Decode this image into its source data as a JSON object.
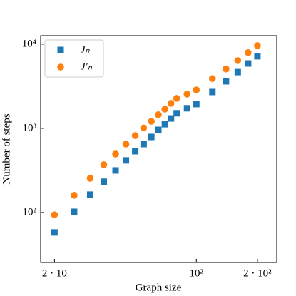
{
  "chart_data": {
    "type": "scatter",
    "xlabel": "Graph size",
    "ylabel": "Number of steps",
    "xlog": true,
    "ylog": true,
    "legend": "upper left",
    "xlim": [
      17.1,
      249
    ],
    "ylim": [
      25.5,
      12600
    ],
    "xticks": [
      {
        "value": 20,
        "label": "2 · 10"
      },
      {
        "value": 100,
        "label": "10²"
      },
      {
        "value": 200,
        "label": "2 · 10²"
      }
    ],
    "yticks": [
      {
        "value": 100,
        "label": "10²"
      },
      {
        "value": 1000,
        "label": "10³"
      },
      {
        "value": 10000,
        "label": "10⁴"
      }
    ],
    "x": [
      20,
      25,
      30,
      35,
      40,
      45,
      50,
      55,
      60,
      65,
      70,
      75,
      80,
      90,
      100,
      120,
      140,
      160,
      180,
      200
    ],
    "series": [
      {
        "name": "Jₙ",
        "color": "#1f77b4",
        "marker": "square",
        "values": [
          58,
          102,
          163,
          232,
          316,
          416,
          535,
          650,
          790,
          960,
          1120,
          1310,
          1510,
          1730,
          1940,
          2700,
          3620,
          4650,
          5890,
          7170
        ]
      },
      {
        "name": "J′ₙ",
        "color": "#ff7f0e",
        "marker": "circle",
        "values": [
          94,
          160,
          255,
          370,
          495,
          650,
          820,
          1010,
          1210,
          1450,
          1690,
          1980,
          2270,
          2550,
          2860,
          3900,
          5070,
          6380,
          7930,
          9600
        ]
      }
    ]
  }
}
